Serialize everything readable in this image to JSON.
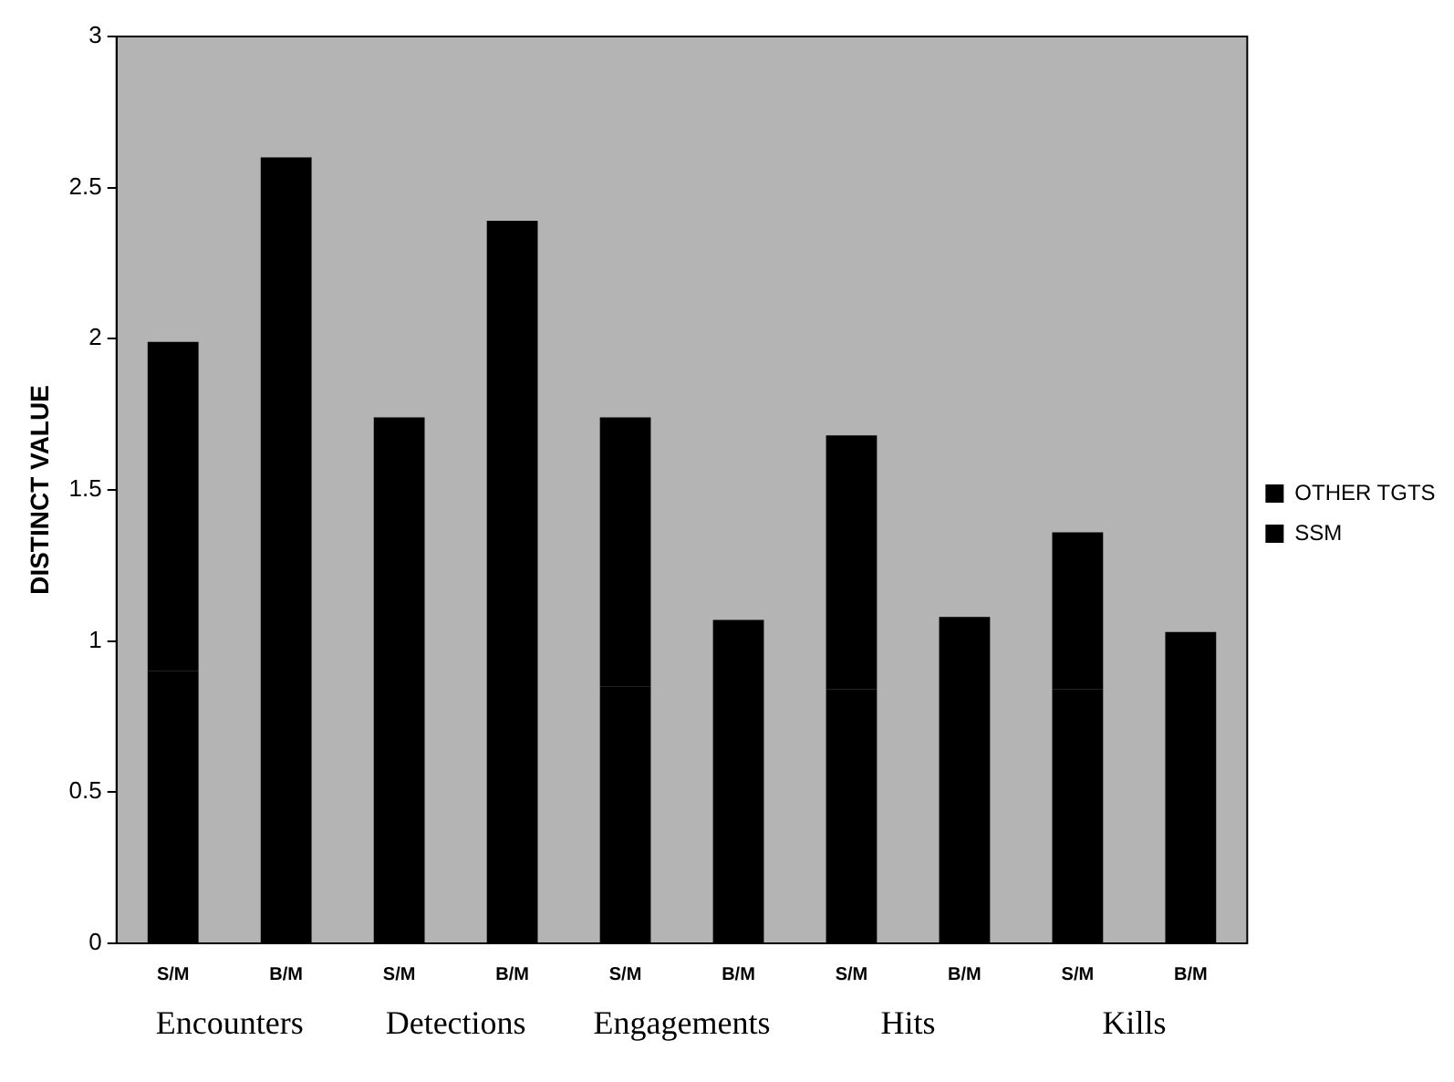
{
  "chart_data": {
    "type": "bar",
    "stacked": true,
    "categories": [
      "S/M",
      "B/M",
      "S/M",
      "B/M",
      "S/M",
      "B/M",
      "S/M",
      "B/M",
      "S/M",
      "B/M"
    ],
    "series": [
      {
        "name": "SSM",
        "color": "#000000",
        "values": [
          0.9,
          0.99,
          0.86,
          0.99,
          0.85,
          0.99,
          0.84,
          0.99,
          0.84,
          0.99
        ]
      },
      {
        "name": "OTHER TGTS",
        "color": "#000000",
        "values": [
          1.09,
          1.61,
          0.88,
          1.4,
          0.89,
          0.08,
          0.84,
          0.09,
          0.52,
          0.04
        ]
      }
    ],
    "ylabel": "DISTINCT VALUE",
    "ylim": [
      0,
      3
    ],
    "yticks": [
      0,
      0.5,
      1,
      1.5,
      2,
      2.5,
      3
    ],
    "annotations": [
      "Encounters",
      "Detections",
      "Engagements",
      "Hits",
      "Kills"
    ],
    "grid": false,
    "legend": "right"
  }
}
